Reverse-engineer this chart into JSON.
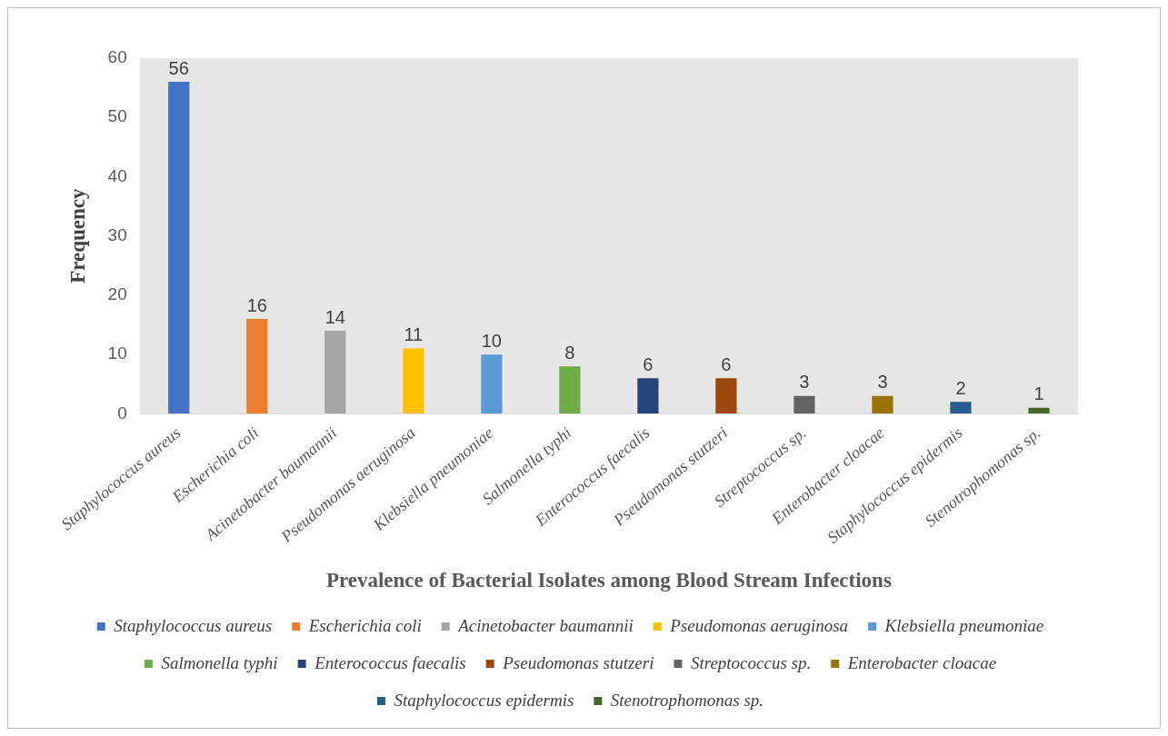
{
  "chart_data": {
    "type": "bar",
    "xlabel": "Prevalence of Bacterial Isolates among Blood Stream Infections",
    "ylabel": "Frequency",
    "categories": [
      "Staphylococcus aureus",
      "Escherichia coli",
      "Acinetobacter baumannii",
      "Pseudomonas aeruginosa",
      "Klebsiella pneumoniae",
      "Salmonella typhi",
      "Enterococcus faecalis",
      "Pseudomonas stutzeri",
      "Streptococcus sp.",
      "Enterobacter cloacae",
      "Staphylococcus epidermis",
      "Stenotrophomonas sp."
    ],
    "series": [
      {
        "name": "Staphylococcus aureus",
        "color": "#4472c4",
        "values": [
          56,
          null,
          null,
          null,
          null,
          null,
          null,
          null,
          null,
          null,
          null,
          null
        ]
      },
      {
        "name": "Escherichia coli",
        "color": "#ed7d31",
        "values": [
          null,
          16,
          null,
          null,
          null,
          null,
          null,
          null,
          null,
          null,
          null,
          null
        ]
      },
      {
        "name": "Acinetobacter baumannii",
        "color": "#a5a5a5",
        "values": [
          null,
          null,
          14,
          null,
          null,
          null,
          null,
          null,
          null,
          null,
          null,
          null
        ]
      },
      {
        "name": "Pseudomonas aeruginosa",
        "color": "#ffc000",
        "values": [
          null,
          null,
          null,
          11,
          null,
          null,
          null,
          null,
          null,
          null,
          null,
          null
        ]
      },
      {
        "name": "Klebsiella pneumoniae",
        "color": "#5b9bd5",
        "values": [
          null,
          null,
          null,
          null,
          10,
          null,
          null,
          null,
          null,
          null,
          null,
          null
        ]
      },
      {
        "name": "Salmonella typhi",
        "color": "#70ad47",
        "values": [
          null,
          null,
          null,
          null,
          null,
          8,
          null,
          null,
          null,
          null,
          null,
          null
        ]
      },
      {
        "name": "Enterococcus faecalis",
        "color": "#264478",
        "values": [
          null,
          null,
          null,
          null,
          null,
          null,
          6,
          null,
          null,
          null,
          null,
          null
        ]
      },
      {
        "name": "Pseudomonas stutzeri",
        "color": "#9e480e",
        "values": [
          null,
          null,
          null,
          null,
          null,
          null,
          null,
          6,
          null,
          null,
          null,
          null
        ]
      },
      {
        "name": "Streptococcus sp.",
        "color": "#636363",
        "values": [
          null,
          null,
          null,
          null,
          null,
          null,
          null,
          null,
          3,
          null,
          null,
          null
        ]
      },
      {
        "name": "Enterobacter cloacae",
        "color": "#997300",
        "values": [
          null,
          null,
          null,
          null,
          null,
          null,
          null,
          null,
          null,
          3,
          null,
          null
        ]
      },
      {
        "name": "Staphylococcus epidermis",
        "color": "#255e91",
        "values": [
          null,
          null,
          null,
          null,
          null,
          null,
          null,
          null,
          null,
          null,
          2,
          null
        ]
      },
      {
        "name": "Stenotrophomonas sp.",
        "color": "#43682b",
        "values": [
          null,
          null,
          null,
          null,
          null,
          null,
          null,
          null,
          null,
          null,
          null,
          1
        ]
      }
    ],
    "ylim": [
      0,
      60
    ],
    "yticks": [
      0,
      10,
      20,
      30,
      40,
      50,
      60
    ],
    "grid": false,
    "legend": "bottom",
    "data_labels": true
  }
}
